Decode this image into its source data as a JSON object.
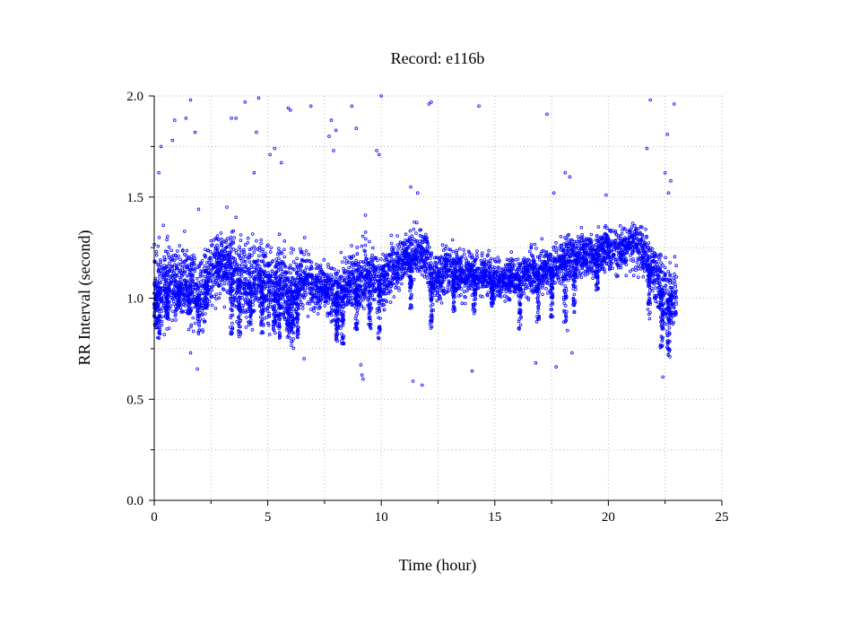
{
  "chart_data": {
    "type": "scatter",
    "title": "Record:  e116b",
    "xlabel": "Time (hour)",
    "ylabel": "RR Interval (second)",
    "xlim": [
      0,
      25
    ],
    "ylim": [
      0,
      2
    ],
    "x_ticks": [
      0,
      5,
      10,
      15,
      20,
      25
    ],
    "x_tick_labels": [
      "0",
      "5",
      "10",
      "15",
      "20",
      "25"
    ],
    "x_minor_ticks": [
      2.5,
      7.5,
      12.5,
      17.5,
      22.5
    ],
    "y_ticks": [
      0,
      0.5,
      1,
      1.5,
      2
    ],
    "y_tick_labels": [
      "0.0",
      "0.5",
      "1.0",
      "1.5",
      "2.0"
    ],
    "y_minor_ticks": [
      0.25,
      0.75,
      1.25,
      1.75
    ],
    "grid": true,
    "series_color": "#0000ff",
    "marker": "open-circle",
    "trend": [
      [
        0.0,
        1.08
      ],
      [
        0.5,
        1.05
      ],
      [
        1.0,
        1.06
      ],
      [
        1.5,
        1.07
      ],
      [
        2.0,
        1.02
      ],
      [
        2.5,
        1.12
      ],
      [
        3.0,
        1.16
      ],
      [
        3.5,
        1.14
      ],
      [
        4.0,
        1.06
      ],
      [
        4.5,
        1.1
      ],
      [
        5.0,
        1.06
      ],
      [
        5.5,
        1.09
      ],
      [
        6.0,
        1.02
      ],
      [
        6.5,
        1.1
      ],
      [
        7.0,
        1.06
      ],
      [
        7.5,
        1.05
      ],
      [
        8.0,
        1.0
      ],
      [
        8.5,
        1.08
      ],
      [
        9.0,
        1.1
      ],
      [
        9.5,
        1.12
      ],
      [
        10.0,
        1.08
      ],
      [
        10.5,
        1.14
      ],
      [
        11.0,
        1.19
      ],
      [
        11.5,
        1.22
      ],
      [
        12.0,
        1.22
      ],
      [
        12.3,
        1.07
      ],
      [
        12.8,
        1.15
      ],
      [
        13.5,
        1.12
      ],
      [
        14.0,
        1.12
      ],
      [
        14.5,
        1.12
      ],
      [
        15.0,
        1.09
      ],
      [
        15.5,
        1.1
      ],
      [
        16.0,
        1.1
      ],
      [
        16.5,
        1.12
      ],
      [
        17.0,
        1.13
      ],
      [
        17.5,
        1.15
      ],
      [
        18.0,
        1.19
      ],
      [
        18.5,
        1.2
      ],
      [
        19.0,
        1.21
      ],
      [
        19.5,
        1.22
      ],
      [
        20.0,
        1.24
      ],
      [
        20.5,
        1.24
      ],
      [
        21.0,
        1.27
      ],
      [
        21.5,
        1.23
      ],
      [
        22.0,
        1.14
      ],
      [
        22.5,
        1.0
      ],
      [
        22.7,
        0.98
      ],
      [
        23.0,
        1.0
      ]
    ],
    "spread": [
      [
        0.0,
        0.14
      ],
      [
        1.0,
        0.12
      ],
      [
        2.0,
        0.12
      ],
      [
        3.0,
        0.1
      ],
      [
        4.0,
        0.12
      ],
      [
        5.0,
        0.13
      ],
      [
        6.0,
        0.12
      ],
      [
        7.0,
        0.08
      ],
      [
        8.0,
        0.08
      ],
      [
        9.0,
        0.1
      ],
      [
        10.0,
        0.1
      ],
      [
        11.0,
        0.07
      ],
      [
        12.0,
        0.08
      ],
      [
        13.0,
        0.08
      ],
      [
        14.0,
        0.07
      ],
      [
        15.0,
        0.06
      ],
      [
        16.0,
        0.06
      ],
      [
        17.0,
        0.07
      ],
      [
        18.0,
        0.07
      ],
      [
        19.0,
        0.07
      ],
      [
        20.0,
        0.07
      ],
      [
        21.0,
        0.08
      ],
      [
        22.0,
        0.1
      ],
      [
        22.6,
        0.12
      ],
      [
        23.0,
        0.1
      ]
    ],
    "dips": [
      [
        0.05,
        0.85
      ],
      [
        0.2,
        0.8
      ],
      [
        0.55,
        0.9
      ],
      [
        1.1,
        0.95
      ],
      [
        1.55,
        0.92
      ],
      [
        1.95,
        0.82
      ],
      [
        2.3,
        0.95
      ],
      [
        3.4,
        0.82
      ],
      [
        3.75,
        0.8
      ],
      [
        4.2,
        0.86
      ],
      [
        4.75,
        0.82
      ],
      [
        5.3,
        0.84
      ],
      [
        5.5,
        0.8
      ],
      [
        5.9,
        0.8
      ],
      [
        6.1,
        0.75
      ],
      [
        6.3,
        0.8
      ],
      [
        8.05,
        0.78
      ],
      [
        8.3,
        0.77
      ],
      [
        8.9,
        0.84
      ],
      [
        9.5,
        0.85
      ],
      [
        9.9,
        0.78
      ],
      [
        11.3,
        0.95
      ],
      [
        12.2,
        0.85
      ],
      [
        13.2,
        0.93
      ],
      [
        14.1,
        0.92
      ],
      [
        14.9,
        0.96
      ],
      [
        16.1,
        0.84
      ],
      [
        16.9,
        0.86
      ],
      [
        17.5,
        0.9
      ],
      [
        18.1,
        0.88
      ],
      [
        18.5,
        0.93
      ],
      [
        19.5,
        1.03
      ],
      [
        21.8,
        0.88
      ],
      [
        22.35,
        0.75
      ],
      [
        22.65,
        0.71
      ]
    ],
    "outliers": [
      [
        0.2,
        1.62
      ],
      [
        0.3,
        1.75
      ],
      [
        0.4,
        1.36
      ],
      [
        0.8,
        1.78
      ],
      [
        0.9,
        1.88
      ],
      [
        1.4,
        1.89
      ],
      [
        1.6,
        1.98
      ],
      [
        1.6,
        0.73
      ],
      [
        1.8,
        1.82
      ],
      [
        1.9,
        0.65
      ],
      [
        1.95,
        1.44
      ],
      [
        3.2,
        1.45
      ],
      [
        3.4,
        1.89
      ],
      [
        3.6,
        1.89
      ],
      [
        3.6,
        1.4
      ],
      [
        4.0,
        1.97
      ],
      [
        4.4,
        1.62
      ],
      [
        4.5,
        1.82
      ],
      [
        4.6,
        1.99
      ],
      [
        5.1,
        1.71
      ],
      [
        5.3,
        1.74
      ],
      [
        5.6,
        1.67
      ],
      [
        5.9,
        1.94
      ],
      [
        6.0,
        1.93
      ],
      [
        6.6,
        0.7
      ],
      [
        6.9,
        1.95
      ],
      [
        7.7,
        1.8
      ],
      [
        7.8,
        1.88
      ],
      [
        7.9,
        1.73
      ],
      [
        8.0,
        1.83
      ],
      [
        8.7,
        1.95
      ],
      [
        8.9,
        1.84
      ],
      [
        9.1,
        0.67
      ],
      [
        9.15,
        0.62
      ],
      [
        9.2,
        0.6
      ],
      [
        9.3,
        1.41
      ],
      [
        9.8,
        1.73
      ],
      [
        9.9,
        1.71
      ],
      [
        10.0,
        2.0
      ],
      [
        11.3,
        1.55
      ],
      [
        11.4,
        0.59
      ],
      [
        11.6,
        1.52
      ],
      [
        11.8,
        0.57
      ],
      [
        12.1,
        1.96
      ],
      [
        12.2,
        1.97
      ],
      [
        14.0,
        0.64
      ],
      [
        14.3,
        1.95
      ],
      [
        16.8,
        0.68
      ],
      [
        17.3,
        1.91
      ],
      [
        17.6,
        1.52
      ],
      [
        17.7,
        0.66
      ],
      [
        18.1,
        1.62
      ],
      [
        18.2,
        0.84
      ],
      [
        18.3,
        1.6
      ],
      [
        18.4,
        0.73
      ],
      [
        19.9,
        1.51
      ],
      [
        21.7,
        1.74
      ],
      [
        21.85,
        1.98
      ],
      [
        22.4,
        0.61
      ],
      [
        22.5,
        1.62
      ],
      [
        22.6,
        1.81
      ],
      [
        22.65,
        1.52
      ],
      [
        22.75,
        1.58
      ],
      [
        22.9,
        1.96
      ]
    ]
  }
}
